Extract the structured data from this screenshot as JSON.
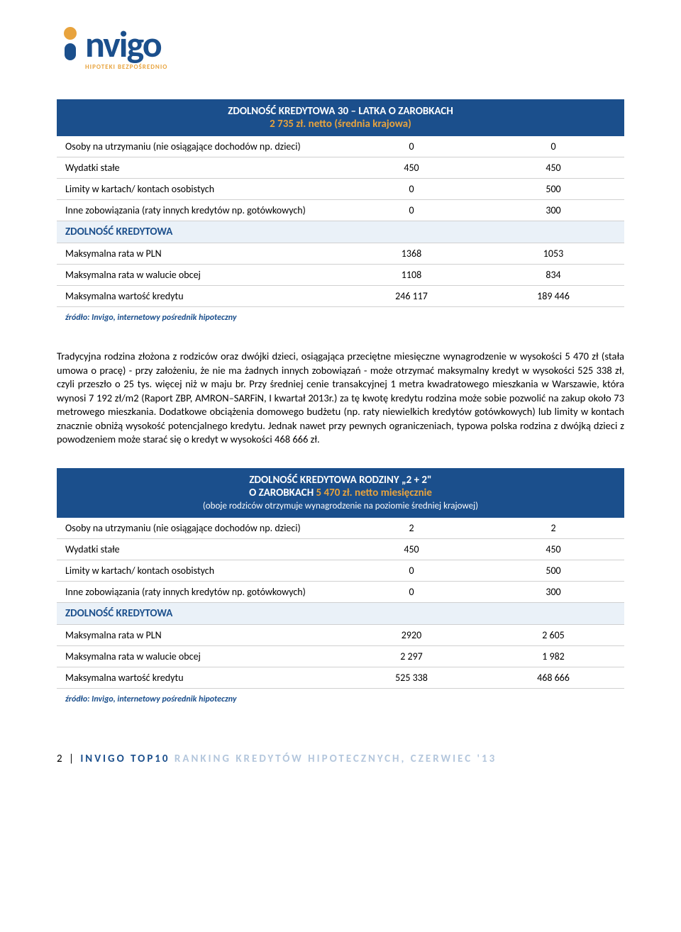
{
  "logo": {
    "text": "nvigo",
    "tagline": "HIPOTEKI BEZPOŚREDNIO",
    "brand_color": "#1b4f8c",
    "accent_color": "#e8a33d"
  },
  "table1": {
    "header_line1": "ZDOLNOŚĆ KREDYTOWA 30 – LATKA O ZAROBKACH",
    "header_line2_orange": "2 735 zł. netto (średnia krajowa)",
    "rows": [
      {
        "label": "Osoby na utrzymaniu (nie osiągające dochodów np. dzieci)",
        "v1": "0",
        "v2": "0"
      },
      {
        "label": "Wydatki stałe",
        "v1": "450",
        "v2": "450"
      },
      {
        "label": "Limity w kartach/ kontach osobistych",
        "v1": "0",
        "v2": "500"
      },
      {
        "label": "Inne zobowiązania (raty innych kredytów np. gotówkowych)",
        "v1": "0",
        "v2": "300"
      }
    ],
    "section": "ZDOLNOŚĆ KREDYTOWA",
    "rows2": [
      {
        "label": "Maksymalna rata w PLN",
        "v1": "1368",
        "v2": "1053"
      },
      {
        "label": "Maksymalna rata w walucie obcej",
        "v1": "1108",
        "v2": "834"
      },
      {
        "label": "Maksymalna wartość kredytu",
        "v1": "246 117",
        "v2": "189 446"
      }
    ],
    "source": "źródło: Invigo, internetowy pośrednik hipoteczny"
  },
  "paragraph": "Tradycyjna rodzina złożona z rodziców oraz dwójki dzieci, osiągająca przeciętne miesięczne wynagrodzenie w wysokości 5 470 zł (stała umowa o pracę) - przy założeniu, że nie ma żadnych innych zobowiązań - może otrzymać maksymalny kredyt w wysokości 525 338 zł, czyli przeszło o 25 tys. więcej niż w maju br. Przy średniej cenie transakcyjnej 1 metra kwadratowego mieszkania w Warszawie, która wynosi 7 192 zł/m2 (Raport ZBP, AMRON–SARFiN, I kwartał 2013r.) za tę kwotę kredytu rodzina może sobie pozwolić na zakup około 73 metrowego mieszkania. Dodatkowe obciążenia domowego budżetu (np. raty niewielkich kredytów gotówkowych) lub limity w kontach znacznie obniżą wysokość potencjalnego kredytu. Jednak nawet przy pewnych ograniczeniach, typowa polska rodzina z dwójką dzieci z powodzeniem może starać się o kredyt w wysokości 468 666 zł.",
  "table2": {
    "header_line1": "ZDOLNOŚĆ KREDYTOWA RODZINY „2 + 2\"",
    "header_line2_prefix": "O ZAROBKACH ",
    "header_line2_orange": "5 470 zł. netto miesięcznie",
    "header_line3": "(oboje rodziców otrzymuje wynagrodzenie na poziomie średniej krajowej)",
    "rows": [
      {
        "label": "Osoby na utrzymaniu (nie osiągające dochodów np. dzieci)",
        "v1": "2",
        "v2": "2"
      },
      {
        "label": "Wydatki stałe",
        "v1": "450",
        "v2": "450"
      },
      {
        "label": "Limity w kartach/ kontach osobistych",
        "v1": "0",
        "v2": "500"
      },
      {
        "label": "Inne zobowiązania (raty innych kredytów np. gotówkowych)",
        "v1": "0",
        "v2": "300"
      }
    ],
    "section": "ZDOLNOŚĆ KREDYTOWA",
    "rows2": [
      {
        "label": "Maksymalna rata w PLN",
        "v1": "2920",
        "v2": "2 605"
      },
      {
        "label": "Maksymalna rata w walucie obcej",
        "v1": "2 297",
        "v2": "1 982"
      },
      {
        "label": "Maksymalna wartość kredytu",
        "v1": "525 338",
        "v2": "468 666"
      }
    ],
    "source": "źródło: Invigo, internetowy pośrednik hipoteczny"
  },
  "footer": {
    "page": "2",
    "sep": " | ",
    "brand": "INVIGO TOP10",
    "rest": " RANKING KREDYTÓW HIPOTECZNYCH, CZERWIEC '13"
  },
  "colors": {
    "header_bg": "#1b4f8c",
    "header_text": "#ffffff",
    "accent": "#e8a33d",
    "section_bg": "#eaf1f8",
    "section_text": "#1b4f8c",
    "border": "#d0d0d0",
    "footer_light": "#b3c6dc"
  }
}
